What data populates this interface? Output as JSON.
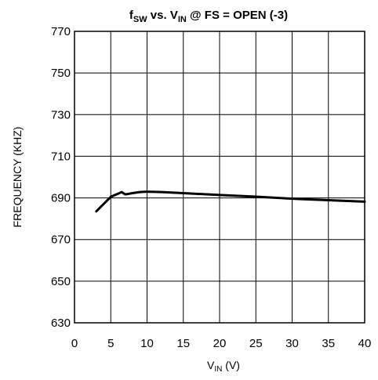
{
  "chart_data": {
    "type": "line",
    "title": {
      "main": "f",
      "main_sub": "SW",
      "mid": " vs. V",
      "mid_sub": "IN",
      "tail": " @ FS = OPEN (-3)"
    },
    "xlabel": {
      "main": "V",
      "sub": "IN",
      "tail": " (V)"
    },
    "ylabel": "FREQUENCY (KHZ)",
    "xlim": [
      0,
      40
    ],
    "ylim": [
      630,
      770
    ],
    "xticks": [
      0,
      5,
      10,
      15,
      20,
      25,
      30,
      35,
      40
    ],
    "yticks": [
      630,
      650,
      670,
      690,
      710,
      730,
      750,
      770
    ],
    "grid": true,
    "series": [
      {
        "x": [
          3.0,
          4.0,
          5.0,
          5.5,
          6.0,
          6.5,
          7.0,
          7.5,
          8.0,
          9.0,
          10.0,
          12.0,
          15.0,
          20.0,
          25.0,
          30.0,
          35.0,
          40.0
        ],
        "y": [
          683.5,
          687.0,
          690.5,
          691.3,
          692.0,
          692.8,
          691.7,
          692.0,
          692.3,
          692.8,
          693.0,
          692.8,
          692.3,
          691.4,
          690.6,
          689.6,
          688.9,
          688.2
        ]
      }
    ]
  }
}
